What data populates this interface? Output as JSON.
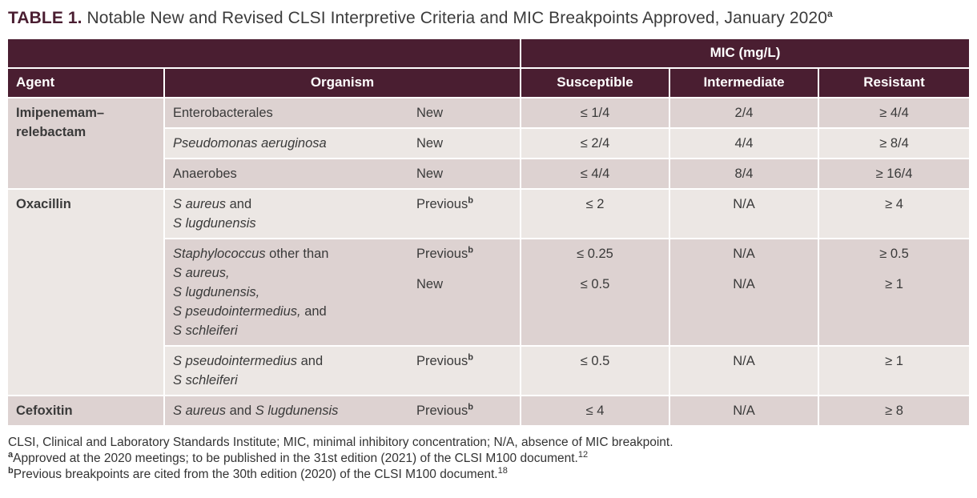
{
  "title": {
    "label": "TABLE 1.",
    "text": " Notable New and Revised CLSI Interpretive Criteria and MIC Breakpoints Approved, January 2020",
    "sup": "a"
  },
  "colors": {
    "header_bg": "#4a1e31",
    "row_dark": "#ddd2d1",
    "row_light": "#ece7e4",
    "grid": "#ffffff",
    "title_accent": "#4a1e31"
  },
  "header": {
    "mic_group": "MIC (mg/L)",
    "agent": "Agent",
    "organism": "Organism",
    "susceptible": "Susceptible",
    "intermediate": "Intermediate",
    "resistant": "Resistant"
  },
  "groups": [
    {
      "agent": [
        {
          "t": "Imipenemam–"
        },
        {
          "br": true
        },
        {
          "t": "relebactam"
        }
      ],
      "rows": [
        {
          "organism": [
            {
              "t": "Enterobacterales"
            }
          ],
          "entries": [
            {
              "status": {
                "text": "New",
                "sup": ""
              },
              "susceptible": "≤ 1/4",
              "intermediate": "2/4",
              "resistant": "≥ 4/4"
            }
          ]
        },
        {
          "organism": [
            {
              "t": "Pseudomonas aeruginosa",
              "i": true
            }
          ],
          "entries": [
            {
              "status": {
                "text": "New",
                "sup": ""
              },
              "susceptible": "≤ 2/4",
              "intermediate": "4/4",
              "resistant": "≥ 8/4"
            }
          ]
        },
        {
          "organism": [
            {
              "t": "Anaerobes"
            }
          ],
          "entries": [
            {
              "status": {
                "text": "New",
                "sup": ""
              },
              "susceptible": "≤ 4/4",
              "intermediate": "8/4",
              "resistant": "≥ 16/4"
            }
          ]
        }
      ]
    },
    {
      "agent": [
        {
          "t": "Oxacillin"
        }
      ],
      "rows": [
        {
          "organism": [
            {
              "t": "S aureus",
              "i": true
            },
            {
              "t": " and"
            },
            {
              "br": true
            },
            {
              "t": "S lugdunensis",
              "i": true
            }
          ],
          "entries": [
            {
              "status": {
                "text": "Previous",
                "sup": "b"
              },
              "susceptible": "≤ 2",
              "intermediate": "N/A",
              "resistant": "≥ 4"
            }
          ]
        },
        {
          "organism": [
            {
              "t": "Staphylococcus",
              "i": true
            },
            {
              "t": " other than"
            },
            {
              "br": true
            },
            {
              "t": "S aureus,",
              "i": true
            },
            {
              "br": true
            },
            {
              "t": "S lugdunensis,",
              "i": true
            },
            {
              "br": true
            },
            {
              "t": "S pseudointermedius,",
              "i": true
            },
            {
              "t": " and"
            },
            {
              "br": true
            },
            {
              "t": "S schleiferi",
              "i": true
            }
          ],
          "entries": [
            {
              "status": {
                "text": "Previous",
                "sup": "b"
              },
              "susceptible": "≤ 0.25",
              "intermediate": "N/A",
              "resistant": "≥ 0.5"
            },
            {
              "status": {
                "text": "New",
                "sup": ""
              },
              "susceptible": "≤ 0.5",
              "intermediate": "N/A",
              "resistant": "≥ 1"
            }
          ]
        },
        {
          "organism": [
            {
              "t": "S pseudointermedius",
              "i": true
            },
            {
              "t": " and"
            },
            {
              "br": true
            },
            {
              "t": "S schleiferi",
              "i": true
            }
          ],
          "entries": [
            {
              "status": {
                "text": "Previous",
                "sup": "b"
              },
              "susceptible": "≤ 0.5",
              "intermediate": "N/A",
              "resistant": "≥ 1"
            }
          ]
        }
      ]
    },
    {
      "agent": [
        {
          "t": "Cefoxitin"
        }
      ],
      "rows": [
        {
          "organism": [
            {
              "t": "S aureus",
              "i": true
            },
            {
              "t": " and "
            },
            {
              "t": "S lugdunensis",
              "i": true
            }
          ],
          "entries": [
            {
              "status": {
                "text": "Previous",
                "sup": "b"
              },
              "susceptible": "≤ 4",
              "intermediate": "N/A",
              "resistant": "≥ 8"
            }
          ]
        }
      ]
    }
  ],
  "footnotes": [
    {
      "sup": "",
      "text": "CLSI, Clinical and Laboratory Standards Institute; MIC, minimal inhibitory concentration; N/A, absence of MIC breakpoint.",
      "ref": ""
    },
    {
      "sup": "a",
      "text": "Approved at the 2020 meetings; to be published in the 31st edition (2021) of the CLSI M100 document.",
      "ref": "12"
    },
    {
      "sup": "b",
      "text": "Previous breakpoints are cited from the 30th edition (2020) of the CLSI M100 document.",
      "ref": "18"
    }
  ]
}
